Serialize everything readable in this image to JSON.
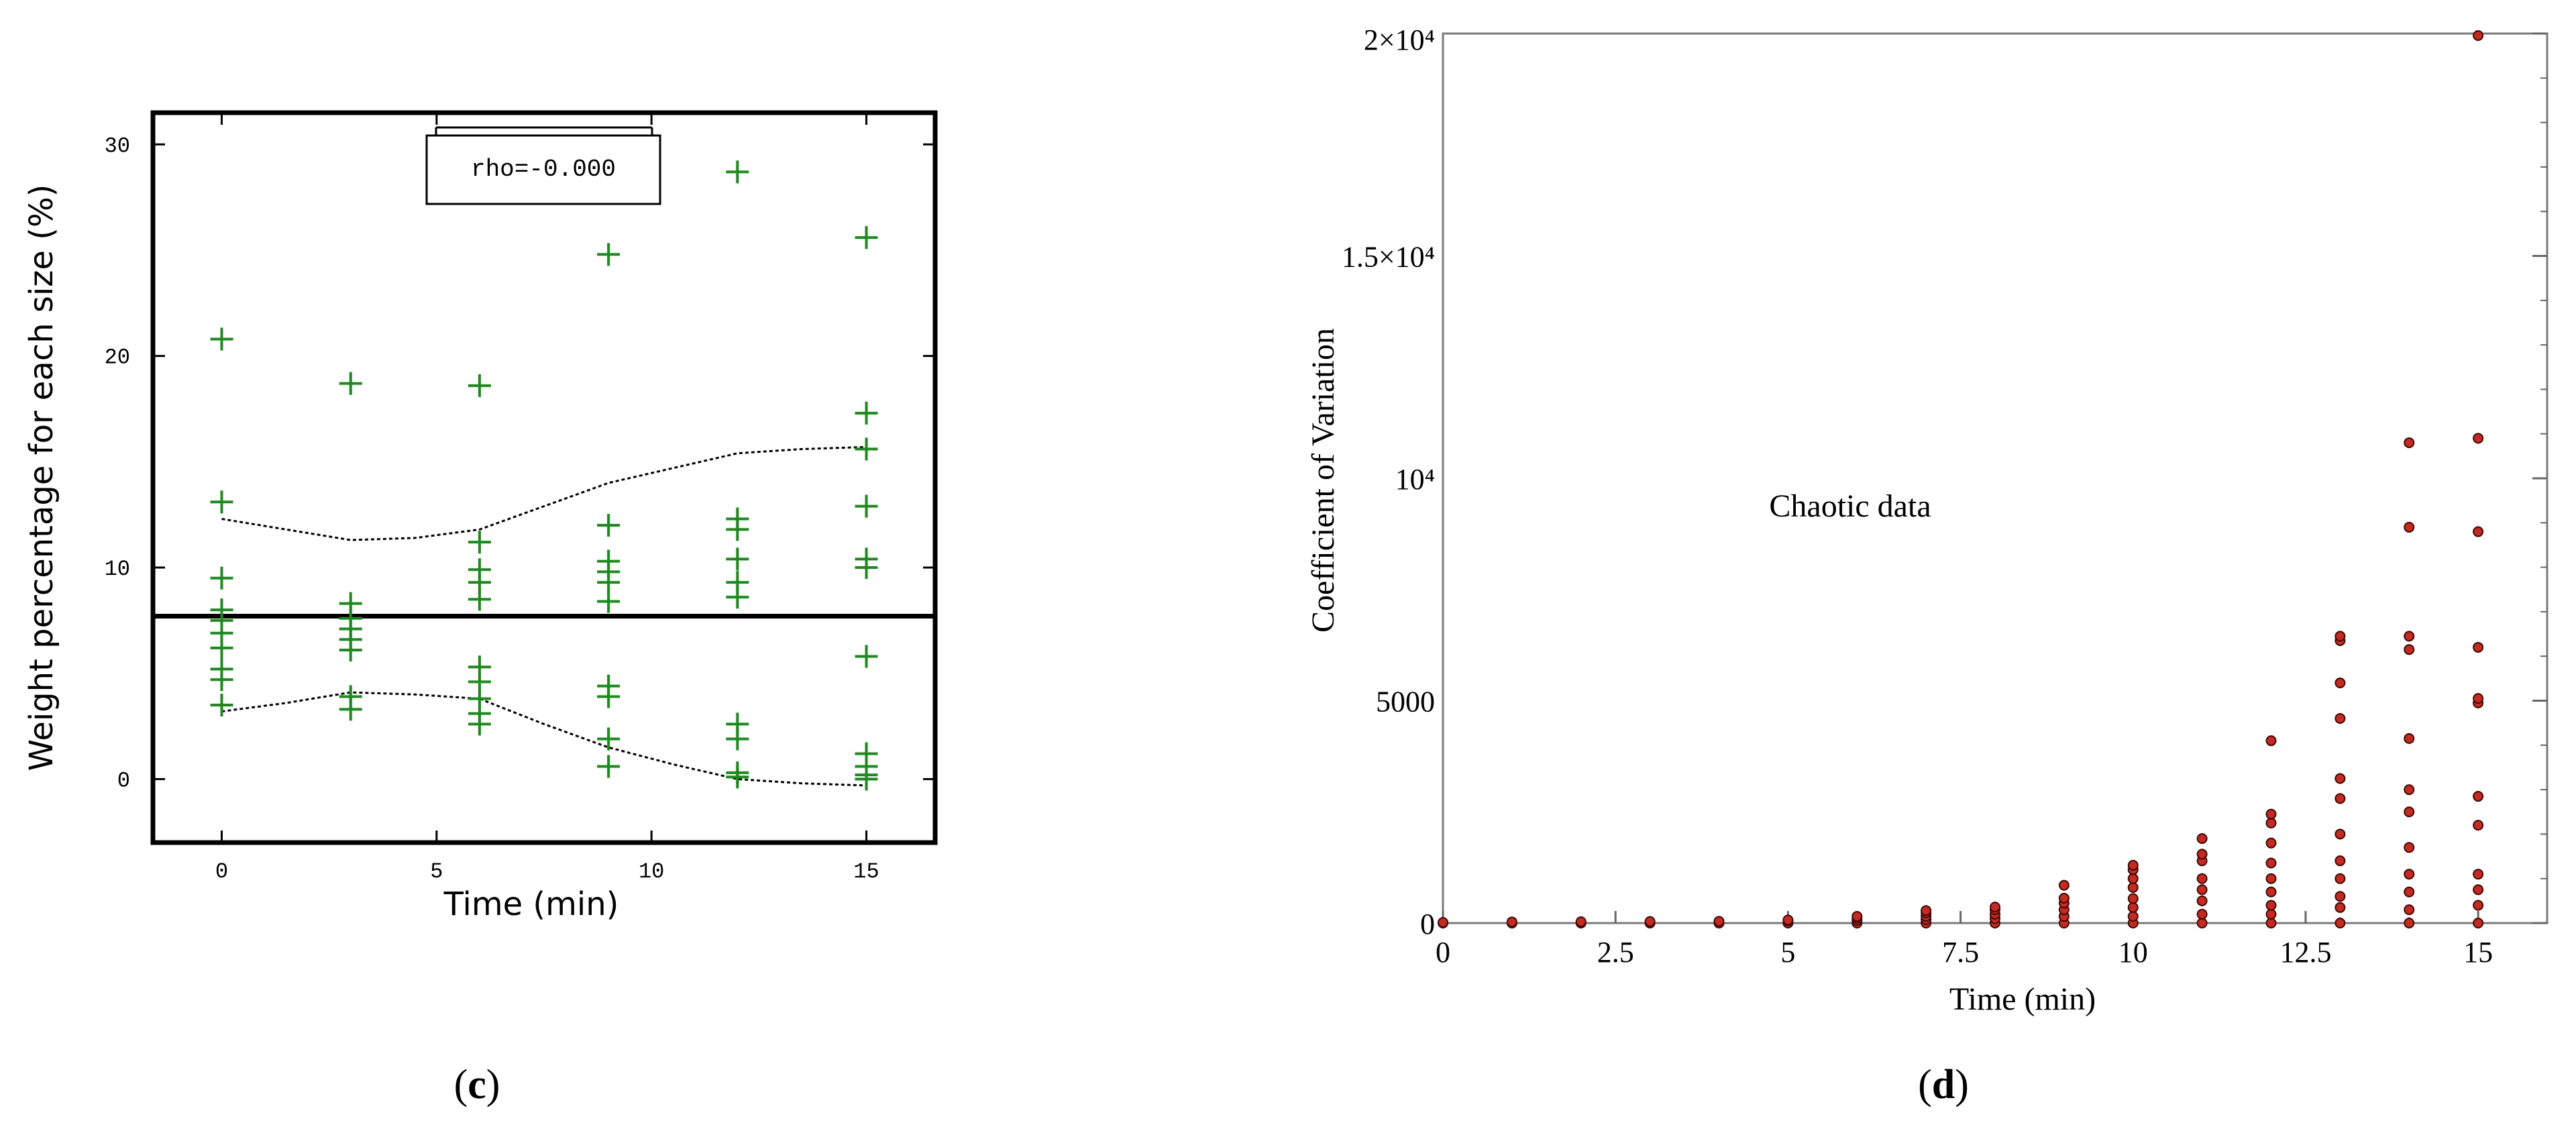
{
  "panels": {
    "c": {
      "caption_open": "(",
      "caption_letter": "c",
      "caption_close": ")"
    },
    "d": {
      "caption_open": "(",
      "caption_letter": "d",
      "caption_close": ")"
    }
  },
  "chart_data": [
    {
      "id": "c",
      "type": "scatter",
      "xlabel": "Time (min)",
      "ylabel": "Weight percentage for each size (%)",
      "xlim": [
        -1.6,
        16.6
      ],
      "ylim": [
        -3,
        31.5
      ],
      "xticks": [
        0,
        5,
        10,
        15
      ],
      "yticks": [
        0,
        10,
        20,
        30
      ],
      "marker": "+",
      "marker_color": "#1a8c1a",
      "annotation": "rho=-0.000",
      "mean_line": 7.7,
      "points": [
        {
          "x": 0,
          "y": 20.8
        },
        {
          "x": 0,
          "y": 13.1
        },
        {
          "x": 0,
          "y": 9.5
        },
        {
          "x": 0,
          "y": 8.0
        },
        {
          "x": 0,
          "y": 7.5
        },
        {
          "x": 0,
          "y": 6.9
        },
        {
          "x": 0,
          "y": 6.2
        },
        {
          "x": 0,
          "y": 5.2
        },
        {
          "x": 0,
          "y": 4.7
        },
        {
          "x": 0,
          "y": 3.5
        },
        {
          "x": 3,
          "y": 18.7
        },
        {
          "x": 3,
          "y": 8.3
        },
        {
          "x": 3,
          "y": 7.6
        },
        {
          "x": 3,
          "y": 7.1
        },
        {
          "x": 3,
          "y": 6.6
        },
        {
          "x": 3,
          "y": 6.1
        },
        {
          "x": 3,
          "y": 3.9
        },
        {
          "x": 3,
          "y": 3.3
        },
        {
          "x": 6,
          "y": 18.6
        },
        {
          "x": 6,
          "y": 11.2
        },
        {
          "x": 6,
          "y": 9.9
        },
        {
          "x": 6,
          "y": 9.3
        },
        {
          "x": 6,
          "y": 8.5
        },
        {
          "x": 6,
          "y": 5.3
        },
        {
          "x": 6,
          "y": 4.6
        },
        {
          "x": 6,
          "y": 3.8
        },
        {
          "x": 6,
          "y": 3.1
        },
        {
          "x": 6,
          "y": 2.6
        },
        {
          "x": 9,
          "y": 24.8
        },
        {
          "x": 9,
          "y": 12.0
        },
        {
          "x": 9,
          "y": 10.3
        },
        {
          "x": 9,
          "y": 9.8
        },
        {
          "x": 9,
          "y": 9.3
        },
        {
          "x": 9,
          "y": 8.4
        },
        {
          "x": 9,
          "y": 4.4
        },
        {
          "x": 9,
          "y": 3.9
        },
        {
          "x": 9,
          "y": 1.9
        },
        {
          "x": 9,
          "y": 0.6
        },
        {
          "x": 12,
          "y": 28.7
        },
        {
          "x": 12,
          "y": 12.3
        },
        {
          "x": 12,
          "y": 11.8
        },
        {
          "x": 12,
          "y": 10.4
        },
        {
          "x": 12,
          "y": 9.3
        },
        {
          "x": 12,
          "y": 8.6
        },
        {
          "x": 12,
          "y": 2.6
        },
        {
          "x": 12,
          "y": 1.9
        },
        {
          "x": 12,
          "y": 0.3
        },
        {
          "x": 12,
          "y": 0.1
        },
        {
          "x": 15,
          "y": 25.6
        },
        {
          "x": 15,
          "y": 17.3
        },
        {
          "x": 15,
          "y": 15.6
        },
        {
          "x": 15,
          "y": 12.9
        },
        {
          "x": 15,
          "y": 10.4
        },
        {
          "x": 15,
          "y": 10.0
        },
        {
          "x": 15,
          "y": 5.8
        },
        {
          "x": 15,
          "y": 1.2
        },
        {
          "x": 15,
          "y": 0.6
        },
        {
          "x": 15,
          "y": 0.2
        },
        {
          "x": 15,
          "y": 0.0
        }
      ],
      "upper_band": [
        [
          0,
          12.3
        ],
        [
          1.5,
          11.8
        ],
        [
          3,
          11.3
        ],
        [
          4.5,
          11.4
        ],
        [
          6,
          11.8
        ],
        [
          7.5,
          12.9
        ],
        [
          9,
          14.0
        ],
        [
          10.5,
          14.7
        ],
        [
          12,
          15.4
        ],
        [
          13.5,
          15.6
        ],
        [
          15,
          15.7
        ]
      ],
      "lower_band": [
        [
          0,
          3.2
        ],
        [
          1.5,
          3.6
        ],
        [
          3,
          4.1
        ],
        [
          4.5,
          4.0
        ],
        [
          6,
          3.8
        ],
        [
          7.5,
          2.6
        ],
        [
          9,
          1.5
        ],
        [
          10.5,
          0.7
        ],
        [
          12,
          0.0
        ],
        [
          13.5,
          -0.2
        ],
        [
          15,
          -0.3
        ]
      ]
    },
    {
      "id": "d",
      "type": "scatter",
      "xlabel": "Time (min)",
      "ylabel": "Coefficient of Variation",
      "xlim": [
        0,
        16
      ],
      "ylim": [
        0,
        20000
      ],
      "xticks": [
        "0",
        "2.5",
        "5",
        "7.5",
        "10",
        "12.5",
        "15"
      ],
      "xtick_values": [
        0,
        2.5,
        5,
        7.5,
        10,
        12.5,
        15
      ],
      "yticks": [
        "0",
        "5000",
        "10⁴",
        "1.5×10⁴",
        "2×10⁴"
      ],
      "ytick_values": [
        0,
        5000,
        10000,
        15000,
        20000
      ],
      "annotation": "Chaotic data",
      "marker": "dot",
      "marker_color": "#c8281e",
      "points": [
        {
          "x": 0,
          "y": 0
        },
        {
          "x": 0,
          "y": 15
        },
        {
          "x": 1,
          "y": 0
        },
        {
          "x": 1,
          "y": 25
        },
        {
          "x": 2,
          "y": 0
        },
        {
          "x": 2,
          "y": 30
        },
        {
          "x": 3,
          "y": 0
        },
        {
          "x": 3,
          "y": 35
        },
        {
          "x": 4,
          "y": 0
        },
        {
          "x": 4,
          "y": 40
        },
        {
          "x": 5,
          "y": 0
        },
        {
          "x": 5,
          "y": 50
        },
        {
          "x": 5,
          "y": 70
        },
        {
          "x": 6,
          "y": 0
        },
        {
          "x": 6,
          "y": 60
        },
        {
          "x": 6,
          "y": 110
        },
        {
          "x": 6,
          "y": 150
        },
        {
          "x": 7,
          "y": 0
        },
        {
          "x": 7,
          "y": 80
        },
        {
          "x": 7,
          "y": 150
        },
        {
          "x": 7,
          "y": 230
        },
        {
          "x": 7,
          "y": 280
        },
        {
          "x": 8,
          "y": 0
        },
        {
          "x": 8,
          "y": 100
        },
        {
          "x": 8,
          "y": 200
        },
        {
          "x": 8,
          "y": 300
        },
        {
          "x": 8,
          "y": 360
        },
        {
          "x": 9,
          "y": 0
        },
        {
          "x": 9,
          "y": 150
        },
        {
          "x": 9,
          "y": 300
        },
        {
          "x": 9,
          "y": 450
        },
        {
          "x": 9,
          "y": 560
        },
        {
          "x": 9,
          "y": 850
        },
        {
          "x": 10,
          "y": 0
        },
        {
          "x": 10,
          "y": 150
        },
        {
          "x": 10,
          "y": 350
        },
        {
          "x": 10,
          "y": 550
        },
        {
          "x": 10,
          "y": 800
        },
        {
          "x": 10,
          "y": 1000
        },
        {
          "x": 10,
          "y": 1200
        },
        {
          "x": 10,
          "y": 1300
        },
        {
          "x": 11,
          "y": 0
        },
        {
          "x": 11,
          "y": 200
        },
        {
          "x": 11,
          "y": 500
        },
        {
          "x": 11,
          "y": 750
        },
        {
          "x": 11,
          "y": 1000
        },
        {
          "x": 11,
          "y": 1400
        },
        {
          "x": 11,
          "y": 1550
        },
        {
          "x": 11,
          "y": 1900
        },
        {
          "x": 12,
          "y": 0
        },
        {
          "x": 12,
          "y": 200
        },
        {
          "x": 12,
          "y": 400
        },
        {
          "x": 12,
          "y": 700
        },
        {
          "x": 12,
          "y": 1000
        },
        {
          "x": 12,
          "y": 1350
        },
        {
          "x": 12,
          "y": 1800
        },
        {
          "x": 12,
          "y": 2250
        },
        {
          "x": 12,
          "y": 2450
        },
        {
          "x": 12,
          "y": 4100
        },
        {
          "x": 13,
          "y": 0
        },
        {
          "x": 13,
          "y": 350
        },
        {
          "x": 13,
          "y": 600
        },
        {
          "x": 13,
          "y": 1000
        },
        {
          "x": 13,
          "y": 1400
        },
        {
          "x": 13,
          "y": 2000
        },
        {
          "x": 13,
          "y": 2800
        },
        {
          "x": 13,
          "y": 3250
        },
        {
          "x": 13,
          "y": 4600
        },
        {
          "x": 13,
          "y": 5400
        },
        {
          "x": 13,
          "y": 6350
        },
        {
          "x": 13,
          "y": 6450
        },
        {
          "x": 14,
          "y": 0
        },
        {
          "x": 14,
          "y": 300
        },
        {
          "x": 14,
          "y": 700
        },
        {
          "x": 14,
          "y": 1100
        },
        {
          "x": 14,
          "y": 1700
        },
        {
          "x": 14,
          "y": 2500
        },
        {
          "x": 14,
          "y": 3000
        },
        {
          "x": 14,
          "y": 4150
        },
        {
          "x": 14,
          "y": 6150
        },
        {
          "x": 14,
          "y": 6450
        },
        {
          "x": 14,
          "y": 8900
        },
        {
          "x": 14,
          "y": 10800
        },
        {
          "x": 15,
          "y": 0
        },
        {
          "x": 15,
          "y": 400
        },
        {
          "x": 15,
          "y": 750
        },
        {
          "x": 15,
          "y": 1100
        },
        {
          "x": 15,
          "y": 2200
        },
        {
          "x": 15,
          "y": 2850
        },
        {
          "x": 15,
          "y": 4950
        },
        {
          "x": 15,
          "y": 5050
        },
        {
          "x": 15,
          "y": 6200
        },
        {
          "x": 15,
          "y": 8800
        },
        {
          "x": 15,
          "y": 10900
        },
        {
          "x": 15,
          "y": 20200
        }
      ]
    }
  ]
}
